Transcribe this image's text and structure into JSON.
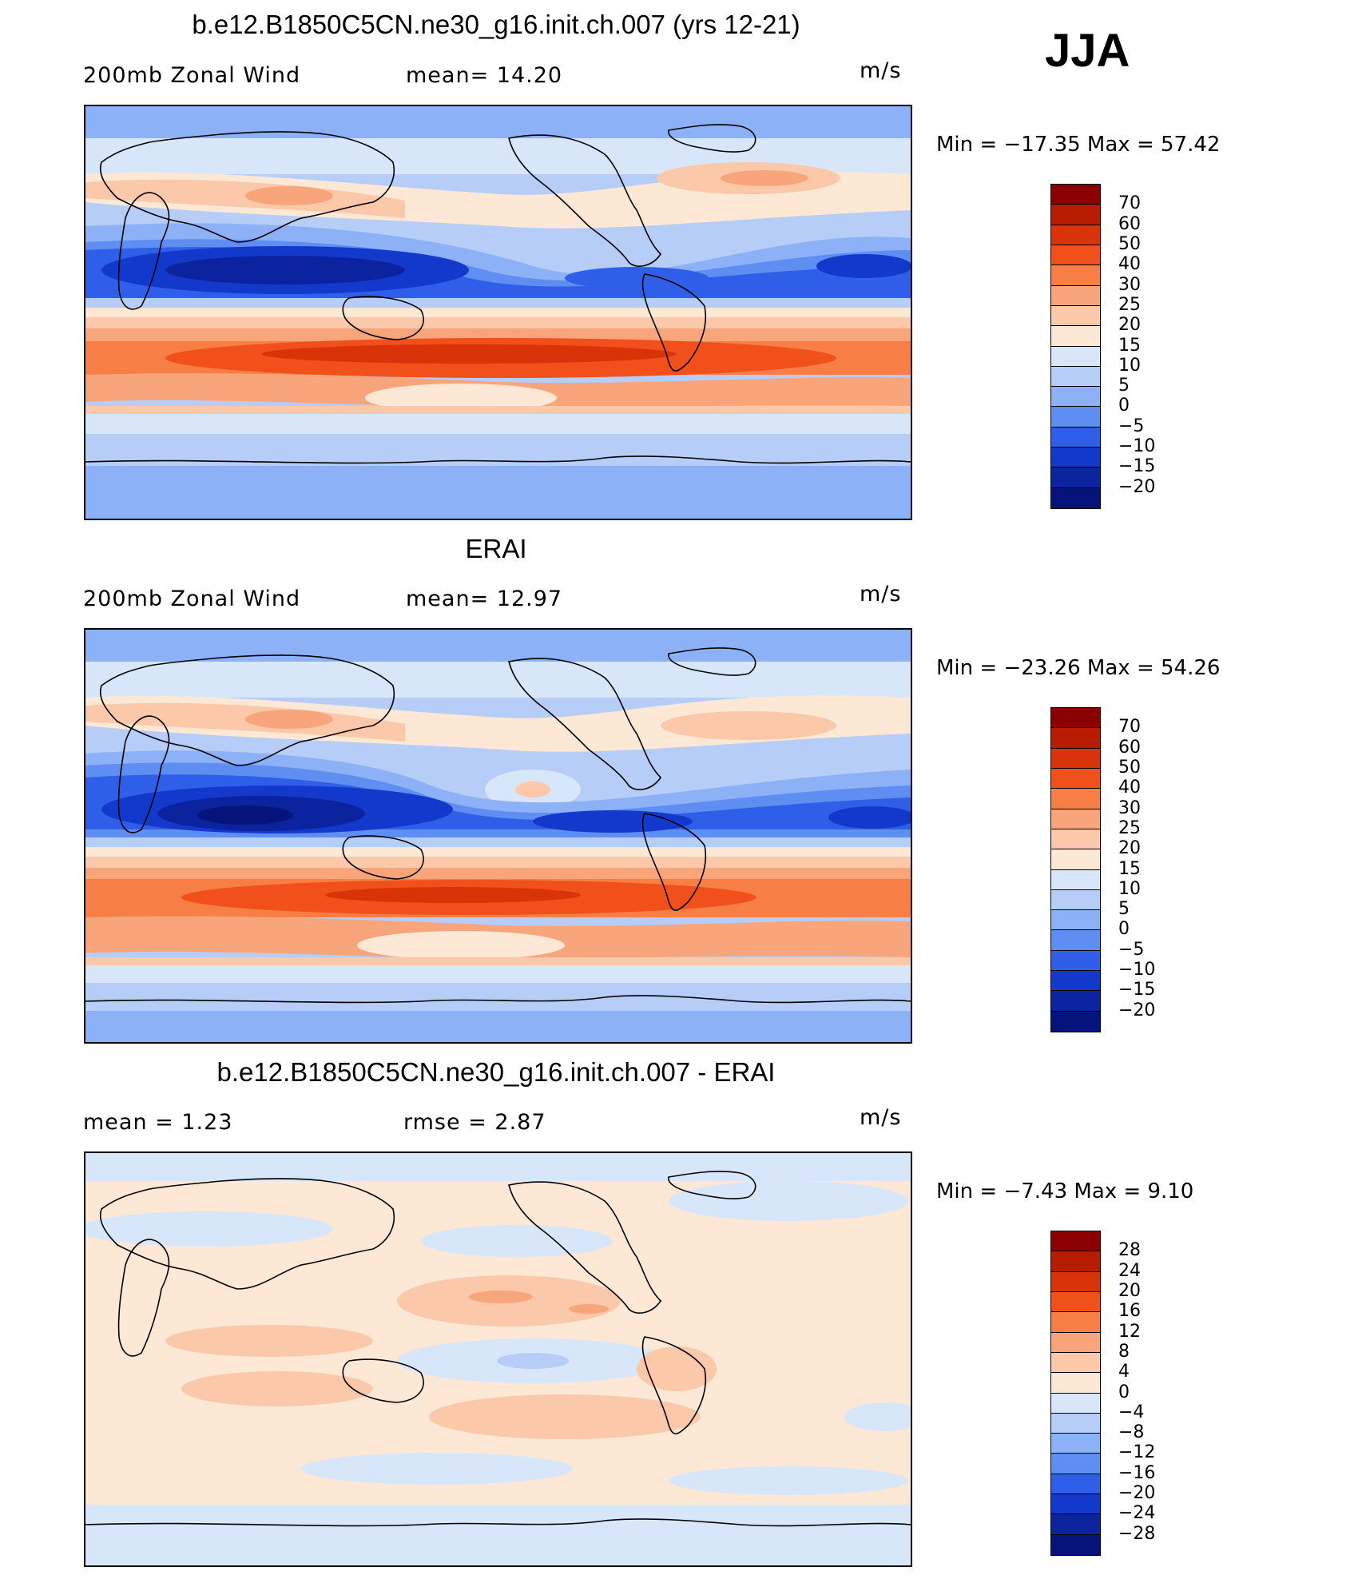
{
  "season": "JJA",
  "panels": [
    {
      "title": "b.e12.B1850C5CN.ne30_g16.init.ch.007 (yrs 12-21)",
      "left_label": "200mb  Zonal  Wind",
      "mid_label": "mean=   14.20",
      "units": "m/s",
      "min_max": "Min  =  −17.35  Max  =    57.42",
      "colorbar_labels": [
        "70",
        "60",
        "50",
        "40",
        "30",
        "25",
        "20",
        "15",
        "10",
        "5",
        "0",
        "−5",
        "−10",
        "−15",
        "−20"
      ],
      "colorbar_colors": [
        "#8b0000",
        "#b81c00",
        "#d9330a",
        "#f2501b",
        "#f77f46",
        "#f9a57c",
        "#fbc8a9",
        "#fde8d5",
        "#d7e6f8",
        "#b5cdf7",
        "#8cb1f7",
        "#5e8ef2",
        "#2f5fe8",
        "#1339cc",
        "#0c23a0",
        "#06137a"
      ]
    },
    {
      "title": "ERAI",
      "left_label": "200mb  Zonal  Wind",
      "mid_label": "mean=   12.97",
      "units": "m/s",
      "min_max": "Min  =  −23.26  Max  =    54.26",
      "colorbar_labels": [
        "70",
        "60",
        "50",
        "40",
        "30",
        "25",
        "20",
        "15",
        "10",
        "5",
        "0",
        "−5",
        "−10",
        "−15",
        "−20"
      ],
      "colorbar_colors": [
        "#8b0000",
        "#b81c00",
        "#d9330a",
        "#f2501b",
        "#f77f46",
        "#f9a57c",
        "#fbc8a9",
        "#fde8d5",
        "#d7e6f8",
        "#b5cdf7",
        "#8cb1f7",
        "#5e8ef2",
        "#2f5fe8",
        "#1339cc",
        "#0c23a0",
        "#06137a"
      ]
    },
    {
      "title": "b.e12.B1850C5CN.ne30_g16.init.ch.007 - ERAI",
      "left_label": "mean  =     1.23",
      "mid_label": "rmse  =     2.87",
      "units": "m/s",
      "min_max": "Min  =     −7.43  Max  =      9.10",
      "colorbar_labels": [
        "28",
        "24",
        "20",
        "16",
        "12",
        "8",
        "4",
        "0",
        "−4",
        "−8",
        "−12",
        "−16",
        "−20",
        "−24",
        "−28"
      ],
      "colorbar_colors": [
        "#8b0000",
        "#b81c00",
        "#d9330a",
        "#f2501b",
        "#f77f46",
        "#f9a57c",
        "#fbc8a9",
        "#fde8d5",
        "#d7e6f8",
        "#b5cdf7",
        "#8cb1f7",
        "#5e8ef2",
        "#2f5fe8",
        "#1339cc",
        "#0c23a0",
        "#06137a"
      ]
    }
  ]
}
